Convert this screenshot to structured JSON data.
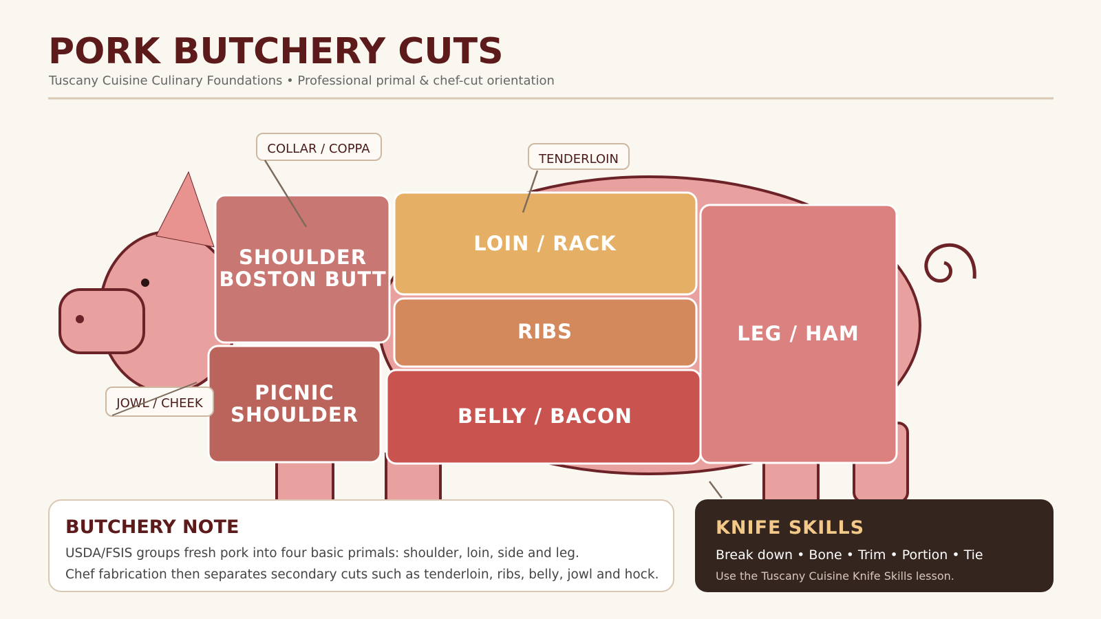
{
  "header": {
    "title": "PORK BUTCHERY CUTS",
    "subtitle": "Tuscany Cuisine Culinary Foundations • Professional primal & chef-cut orientation"
  },
  "cuts": [
    {
      "lines": [
        "SHOULDER",
        "BOSTON BUTT"
      ]
    },
    {
      "lines": [
        "LOIN / RACK"
      ]
    },
    {
      "lines": [
        "RIBS"
      ]
    },
    {
      "lines": [
        "BELLY / BACON"
      ]
    },
    {
      "lines": [
        "LEG / HAM"
      ]
    },
    {
      "lines": [
        "PICNIC",
        "SHOULDER"
      ]
    }
  ],
  "callouts": [
    "COLLAR / COPPA",
    "TENDERLOIN",
    "JOWL / CHEEK"
  ],
  "note": {
    "title": "BUTCHERY NOTE",
    "lines": [
      "USDA/FSIS groups fresh pork into four basic primals: shoulder, loin, side and leg.",
      "Chef fabrication then separates secondary cuts such as tenderloin, ribs, belly, jowl and hock."
    ]
  },
  "skills": {
    "title": "KNIFE SKILLS",
    "steps": "Break down • Bone • Trim • Portion • Tie",
    "lesson": "Use the Tuscany Cuisine Knife Skills lesson."
  }
}
